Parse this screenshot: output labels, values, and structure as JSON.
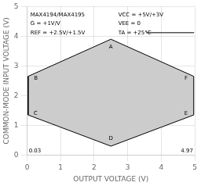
{
  "chart_data": {
    "type": "polygon",
    "xlabel": "OUTPUT VOLTAGE (V)",
    "ylabel": "COMMON-MODE INPUT VOLTAGE (V)",
    "xlim": [
      0,
      5
    ],
    "ylim": [
      0,
      5
    ],
    "xticks": [
      0,
      1,
      2,
      3,
      4,
      5
    ],
    "yticks": [
      0,
      1,
      2,
      3,
      4,
      5
    ],
    "grid": true,
    "series": [
      {
        "type": "polygon",
        "color": "#cccccc",
        "x": [
          2.5,
          0.03,
          0.03,
          2.5,
          4.97,
          4.97
        ],
        "y": [
          3.9,
          2.65,
          1.35,
          0.3,
          1.35,
          2.65
        ],
        "labels": [
          "A",
          "B",
          "C",
          "D",
          "E",
          "F"
        ]
      },
      {
        "type": "line",
        "color": "#000000",
        "x": [
          3.55,
          4.98
        ],
        "y": [
          4.12,
          4.12
        ]
      }
    ],
    "annotations": [
      {
        "text": "0.03",
        "x": 0.05,
        "y": 0.15
      },
      {
        "text": "4.97",
        "x": 4.95,
        "y": 0.15
      },
      {
        "text": "MAX4194/MAX4195",
        "x": 0.1,
        "y": 4.72
      },
      {
        "text": "G = +1V/V",
        "x": 0.1,
        "y": 4.42
      },
      {
        "text": "REF = +2.5V/+1.5V",
        "x": 0.1,
        "y": 4.12
      },
      {
        "text": "VCC = +5V/+3V",
        "x": 2.72,
        "y": 4.72
      },
      {
        "text": "VEE = 0",
        "x": 2.72,
        "y": 4.42
      },
      {
        "text": "TA = +25°C",
        "x": 2.72,
        "y": 4.12
      }
    ]
  }
}
